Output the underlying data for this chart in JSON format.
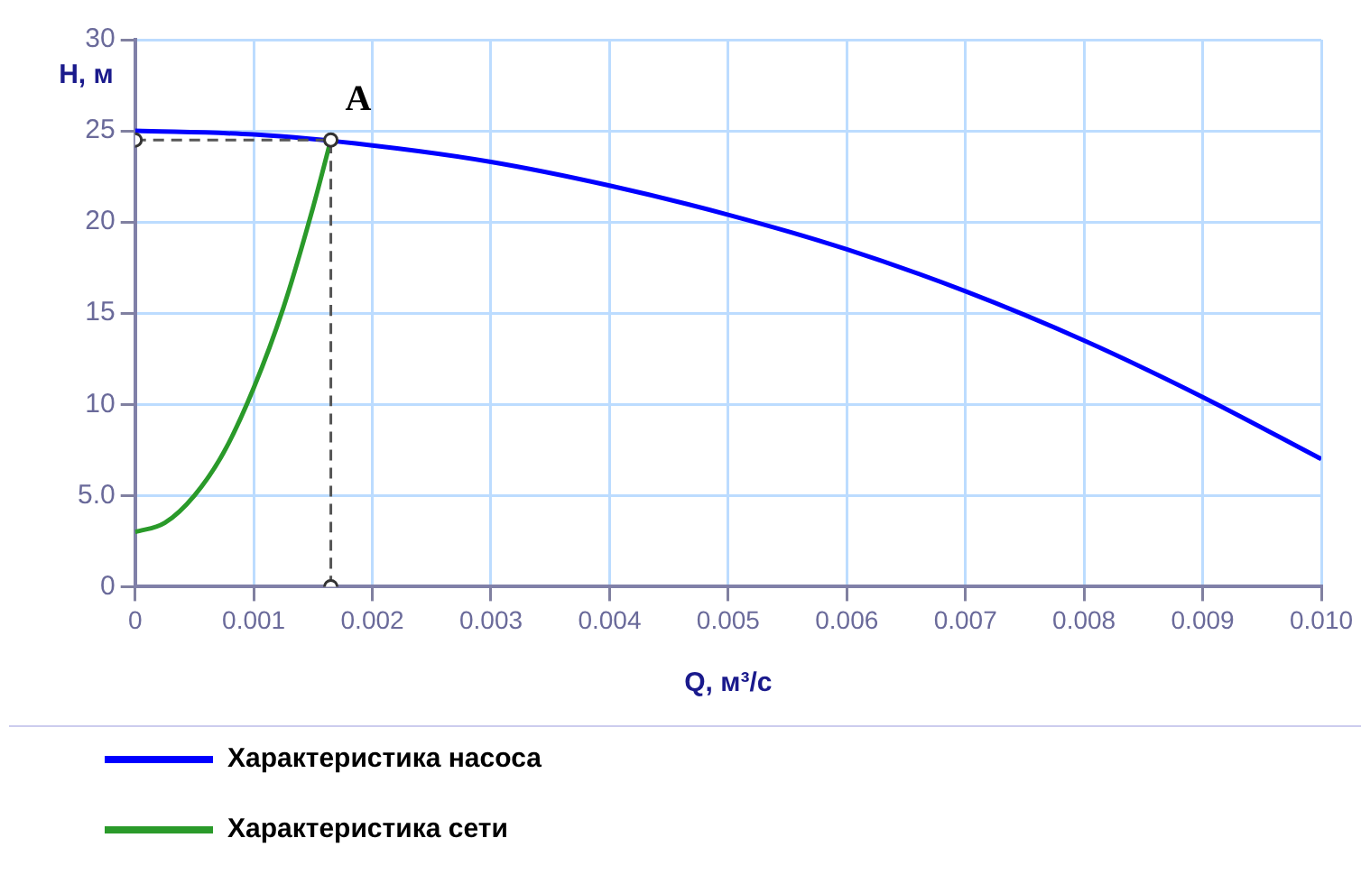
{
  "chart_data": {
    "type": "line",
    "xlabel": "Q, м³/с",
    "ylabel": "H, м",
    "xlim": [
      0,
      0.01
    ],
    "xticks": [
      0,
      0.001,
      0.002,
      0.003,
      0.004,
      0.005,
      0.006,
      0.007,
      0.008,
      0.009,
      {
        "value": 0.01,
        "label": "0.010"
      }
    ],
    "ylim": [
      0,
      30
    ],
    "yticks": [
      0,
      {
        "value": 5,
        "label": "5.0"
      },
      10,
      15,
      20,
      25,
      30
    ],
    "grid": true,
    "legend": "bottom",
    "marker": "none",
    "series": [
      {
        "name": "Характеристика насоса",
        "color": "#0000ff",
        "x": [
          0,
          0.001,
          0.002,
          0.003,
          0.004,
          0.005,
          0.006,
          0.007,
          0.008,
          0.009,
          0.01
        ],
        "values": [
          25.0,
          24.8,
          24.2,
          23.3,
          22.0,
          20.4,
          18.5,
          16.2,
          13.5,
          10.4,
          7.0
        ]
      },
      {
        "name": "Характеристика сети",
        "color": "#2a9a2a",
        "x": [
          0,
          0.00025,
          0.0005,
          0.00075,
          0.001,
          0.00125,
          0.0015,
          0.00165
        ],
        "values": [
          3.0,
          3.5,
          5.0,
          7.4,
          10.9,
          15.3,
          20.8,
          24.5
        ]
      },
      {
        "color": "#555555",
        "line_style": "dashed",
        "marker": "circle",
        "x": [
          0,
          0.00165,
          0.00165
        ],
        "values": [
          24.5,
          24.5,
          0
        ]
      }
    ],
    "annotations": [
      {
        "text": "A",
        "x": 0.00165,
        "y": 24.5
      }
    ]
  }
}
